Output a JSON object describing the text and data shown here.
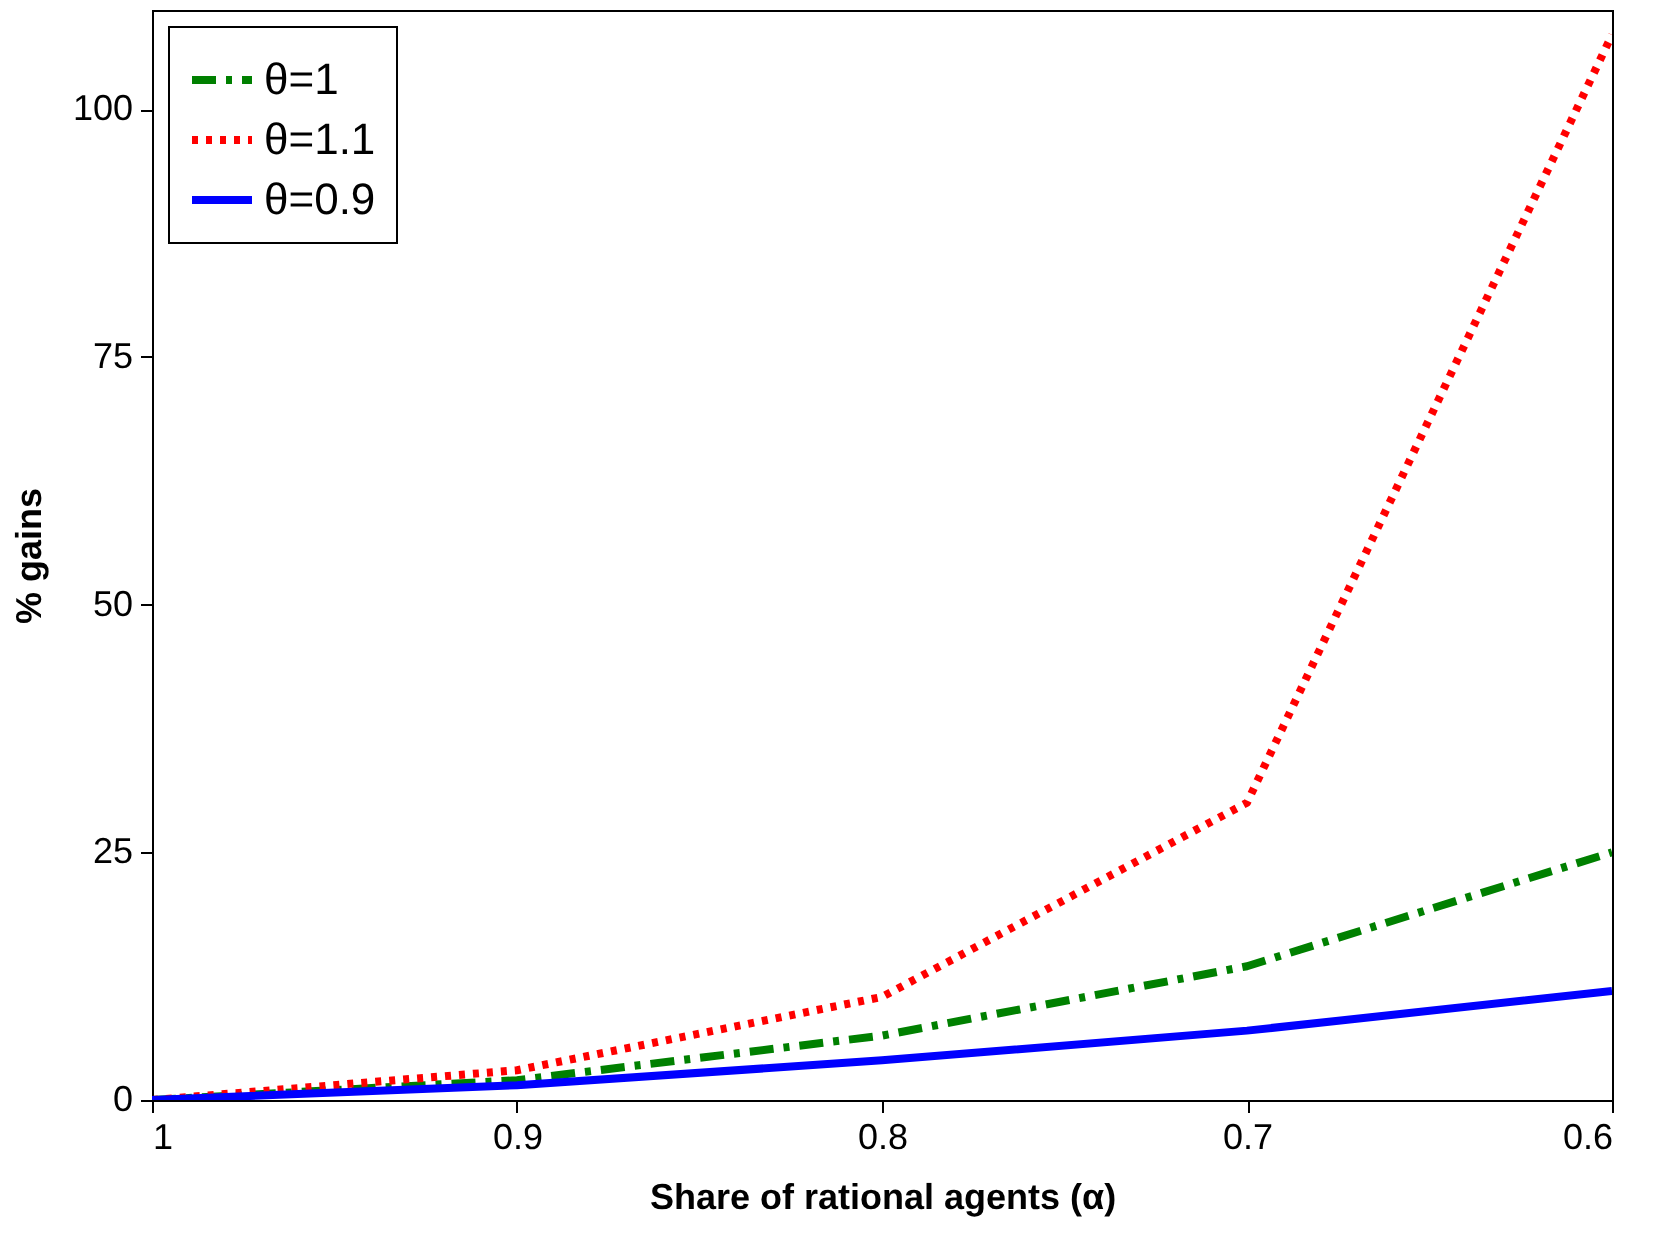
{
  "chart_data": {
    "type": "line",
    "xlabel": "Share of rational agents (α)",
    "ylabel": "% gains",
    "x": [
      1,
      0.9,
      0.8,
      0.7,
      0.6
    ],
    "series": [
      {
        "name": "θ=1",
        "color": "#008000",
        "line_style": "dashdot",
        "values": [
          0,
          2,
          6.5,
          13.5,
          25
        ]
      },
      {
        "name": "θ=1.1",
        "color": "#ff0000",
        "line_style": "dotted",
        "values": [
          0,
          3,
          10.4,
          30,
          107.5
        ]
      },
      {
        "name": "θ=0.9",
        "color": "#0000ff",
        "line_style": "solid",
        "values": [
          0,
          1.5,
          4,
          7,
          11
        ]
      }
    ],
    "xlim": [
      1,
      0.6
    ],
    "xticks": [
      1,
      0.9,
      0.8,
      0.7,
      0.6
    ],
    "ylim": [
      0,
      110
    ],
    "yticks": [
      0,
      25,
      50,
      75,
      100
    ],
    "grid": false,
    "legend": "top left",
    "marker": "none"
  }
}
